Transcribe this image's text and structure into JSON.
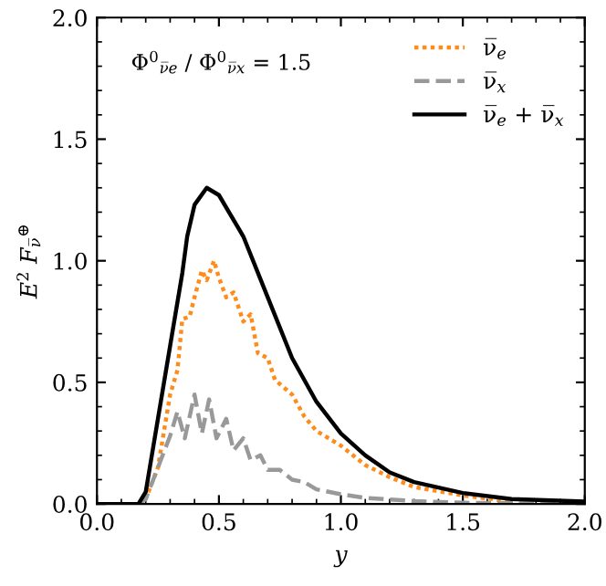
{
  "chart_data": {
    "type": "line",
    "xlabel": "y",
    "ylabel": "E$^{2}$ F$_{ν̅}$$^{⊕}$",
    "annotations": [
      "Φ$^{0}$$_{ν̅e}$ / Φ$^{0}$$_{ν̅x}$ = 1.5"
    ],
    "xlim": [
      0,
      2
    ],
    "ylim": [
      0,
      2
    ],
    "xticks": [
      {
        "value": 0,
        "label": "0.0"
      },
      0.5,
      {
        "value": 1,
        "label": "1.0"
      },
      1.5,
      {
        "value": 2,
        "label": "2.0"
      }
    ],
    "yticks": [
      {
        "value": 0,
        "label": "0.0"
      },
      0.5,
      {
        "value": 1,
        "label": "1.0"
      },
      1.5,
      {
        "value": 2,
        "label": "2.0"
      }
    ],
    "legend": "top right",
    "grid": false,
    "series": [
      {
        "name": "ν̅$_{e}$",
        "color": "#ff8c1a",
        "line_style": "dotted",
        "x": [
          0.17,
          0.2,
          0.25,
          0.3,
          0.33,
          0.35,
          0.38,
          0.4,
          0.43,
          0.45,
          0.48,
          0.5,
          0.53,
          0.56,
          0.6,
          0.63,
          0.66,
          0.7,
          0.73,
          0.8,
          0.85,
          0.9,
          1.0,
          1.1,
          1.2,
          1.3,
          1.5,
          1.7
        ],
        "values": [
          0.0,
          0.02,
          0.15,
          0.45,
          0.55,
          0.76,
          0.77,
          0.85,
          0.96,
          0.92,
          1.0,
          0.93,
          0.85,
          0.87,
          0.75,
          0.78,
          0.62,
          0.6,
          0.51,
          0.45,
          0.36,
          0.3,
          0.24,
          0.16,
          0.11,
          0.07,
          0.035,
          0.01
        ]
      },
      {
        "name": "ν̅$_{x}$",
        "color": "#999999",
        "line_style": "dashed",
        "x": [
          0.17,
          0.2,
          0.25,
          0.3,
          0.33,
          0.36,
          0.4,
          0.43,
          0.46,
          0.49,
          0.53,
          0.56,
          0.6,
          0.63,
          0.67,
          0.7,
          0.75,
          0.8,
          0.85,
          0.9,
          1.0,
          1.1,
          1.3,
          1.5,
          2.0
        ],
        "values": [
          0.0,
          0.02,
          0.15,
          0.28,
          0.38,
          0.27,
          0.45,
          0.29,
          0.43,
          0.27,
          0.35,
          0.22,
          0.27,
          0.18,
          0.2,
          0.14,
          0.14,
          0.1,
          0.09,
          0.06,
          0.04,
          0.025,
          0.012,
          0.005,
          0.0
        ]
      },
      {
        "name": "ν̅$_{e}$ + ν̅$_{x}$",
        "color": "#000000",
        "line_style": "solid",
        "x": [
          0.0,
          0.17,
          0.2,
          0.25,
          0.3,
          0.35,
          0.37,
          0.4,
          0.45,
          0.5,
          0.6,
          0.7,
          0.8,
          0.9,
          1.0,
          1.1,
          1.2,
          1.3,
          1.5,
          1.7,
          2.0
        ],
        "values": [
          0.0,
          0.0,
          0.05,
          0.35,
          0.65,
          0.95,
          1.1,
          1.23,
          1.3,
          1.27,
          1.1,
          0.85,
          0.6,
          0.42,
          0.29,
          0.2,
          0.13,
          0.09,
          0.045,
          0.02,
          0.01
        ]
      }
    ]
  }
}
